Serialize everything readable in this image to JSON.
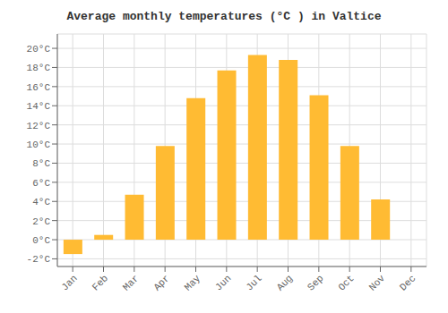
{
  "chart_data": {
    "type": "bar",
    "title": "Average monthly temperatures (°C ) in Valtice",
    "categories": [
      "Jan",
      "Feb",
      "Mar",
      "Apr",
      "May",
      "Jun",
      "Jul",
      "Aug",
      "Sep",
      "Oct",
      "Nov",
      "Dec"
    ],
    "values": [
      -1.5,
      0.5,
      4.7,
      9.8,
      14.8,
      17.7,
      19.3,
      18.8,
      15.1,
      9.8,
      4.2,
      0.0
    ],
    "color": "#FFBB33",
    "ylim": [
      -2.8,
      21.5
    ],
    "yticks": [
      {
        "value": -2,
        "label": "-2°C"
      },
      {
        "value": 0,
        "label": "0°C"
      },
      {
        "value": 2,
        "label": "2°C"
      },
      {
        "value": 4,
        "label": "4°C"
      },
      {
        "value": 6,
        "label": "6°C"
      },
      {
        "value": 8,
        "label": "8°C"
      },
      {
        "value": 10,
        "label": "10°C"
      },
      {
        "value": 12,
        "label": "12°C"
      },
      {
        "value": 14,
        "label": "14°C"
      },
      {
        "value": 16,
        "label": "16°C"
      },
      {
        "value": 18,
        "label": "18°C"
      },
      {
        "value": 20,
        "label": "20°C"
      }
    ],
    "grid": true
  }
}
